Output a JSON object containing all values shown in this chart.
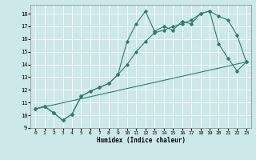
{
  "xlabel": "Humidex (Indice chaleur)",
  "background_color": "#cce8e8",
  "grid_color": "#ffffff",
  "line_color": "#2e7d6e",
  "xlim": [
    -0.5,
    23.5
  ],
  "ylim": [
    9,
    18.7
  ],
  "yticks": [
    9,
    10,
    11,
    12,
    13,
    14,
    15,
    16,
    17,
    18
  ],
  "xticks": [
    0,
    1,
    2,
    3,
    4,
    5,
    6,
    7,
    8,
    9,
    10,
    11,
    12,
    13,
    14,
    15,
    16,
    17,
    18,
    19,
    20,
    21,
    22,
    23
  ],
  "line1_x": [
    0,
    1,
    2,
    3,
    4,
    5,
    6,
    7,
    8,
    9,
    10,
    11,
    12,
    13,
    14,
    15,
    16,
    17,
    18,
    19,
    20,
    21,
    22,
    23
  ],
  "line1_y": [
    10.5,
    10.7,
    10.2,
    9.6,
    10.1,
    11.5,
    11.9,
    12.2,
    12.5,
    13.2,
    14.0,
    15.0,
    15.8,
    16.5,
    16.7,
    17.0,
    17.2,
    17.5,
    18.0,
    18.2,
    17.8,
    17.5,
    16.3,
    14.2
  ],
  "line2_x": [
    0,
    1,
    2,
    3,
    4,
    5,
    6,
    7,
    8,
    9,
    10,
    11,
    12,
    13,
    14,
    15,
    16,
    17,
    18,
    19,
    20,
    21,
    22,
    23
  ],
  "line2_y": [
    10.5,
    10.7,
    10.2,
    9.6,
    10.1,
    11.5,
    11.9,
    12.2,
    12.5,
    13.2,
    15.8,
    17.2,
    18.2,
    16.6,
    17.0,
    16.7,
    17.4,
    17.2,
    18.0,
    18.2,
    15.6,
    14.5,
    13.5,
    14.2
  ],
  "line3_x": [
    0,
    23
  ],
  "line3_y": [
    10.5,
    14.2
  ]
}
